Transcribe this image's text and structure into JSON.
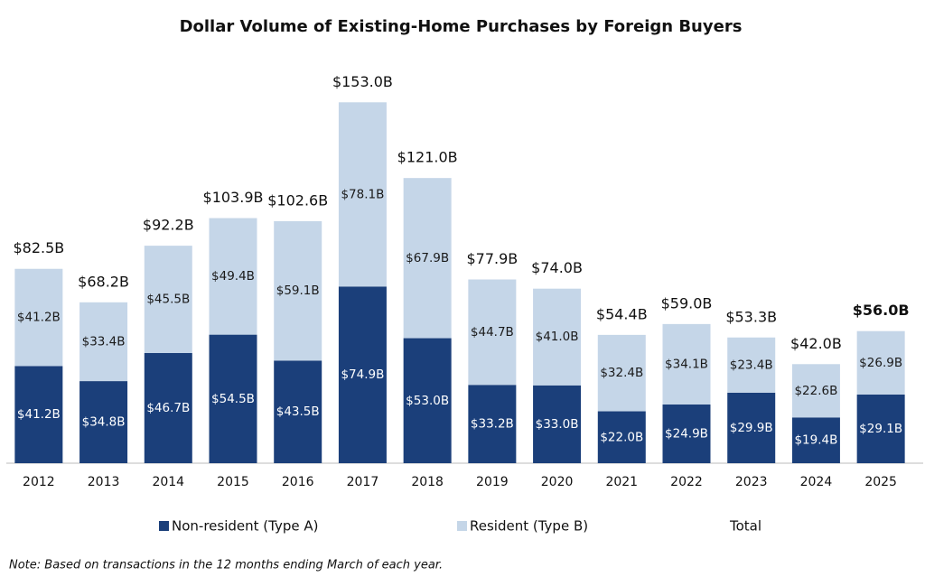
{
  "chart_data": {
    "type": "bar",
    "stacked": true,
    "title": "Dollar Volume of Existing-Home Purchases by Foreign Buyers",
    "note": "Note: Based on transactions in the 12 months ending March of each year.",
    "categories": [
      "2012",
      "2013",
      "2014",
      "2015",
      "2016",
      "2017",
      "2018",
      "2019",
      "2020",
      "2021",
      "2022",
      "2023",
      "2024",
      "2025"
    ],
    "ylim": [
      0,
      160
    ],
    "series": [
      {
        "name": "Non-resident (Type A)",
        "color": "#1b3f7a",
        "values": [
          41.2,
          34.8,
          46.7,
          54.5,
          43.5,
          74.9,
          53.0,
          33.2,
          33.0,
          22.0,
          24.9,
          29.9,
          19.4,
          29.1
        ],
        "value_labels": [
          "$41.2B",
          "$34.8B",
          "$46.7B",
          "$54.5B",
          "$43.5B",
          "$74.9B",
          "$53.0B",
          "$33.2B",
          "$33.0B",
          "$22.0B",
          "$24.9B",
          "$29.9B",
          "$19.4B",
          "$29.1B"
        ]
      },
      {
        "name": "Resident (Type B)",
        "color": "#c5d6e8",
        "values": [
          41.2,
          33.4,
          45.5,
          49.4,
          59.1,
          78.1,
          67.9,
          44.7,
          41.0,
          32.4,
          34.1,
          23.4,
          22.6,
          26.9
        ],
        "value_labels": [
          "$41.2B",
          "$33.4B",
          "$45.5B",
          "$49.4B",
          "$59.1B",
          "$78.1B",
          "$67.9B",
          "$44.7B",
          "$41.0B",
          "$32.4B",
          "$34.1B",
          "$23.4B",
          "$22.6B",
          "$26.9B"
        ]
      },
      {
        "name": "Total",
        "values": [
          82.5,
          68.2,
          92.2,
          103.9,
          102.6,
          153.0,
          121.0,
          77.9,
          74.0,
          54.4,
          59.0,
          53.3,
          42.0,
          56.0
        ],
        "value_labels": [
          "$82.5B",
          "$68.2B",
          "$92.2B",
          "$103.9B",
          "$102.6B",
          "$153.0B",
          "$121.0B",
          "$77.9B",
          "$74.0B",
          "$54.4B",
          "$59.0B",
          "$53.3B",
          "$42.0B",
          "$56.0B"
        ],
        "bold_index": 13
      }
    ]
  }
}
